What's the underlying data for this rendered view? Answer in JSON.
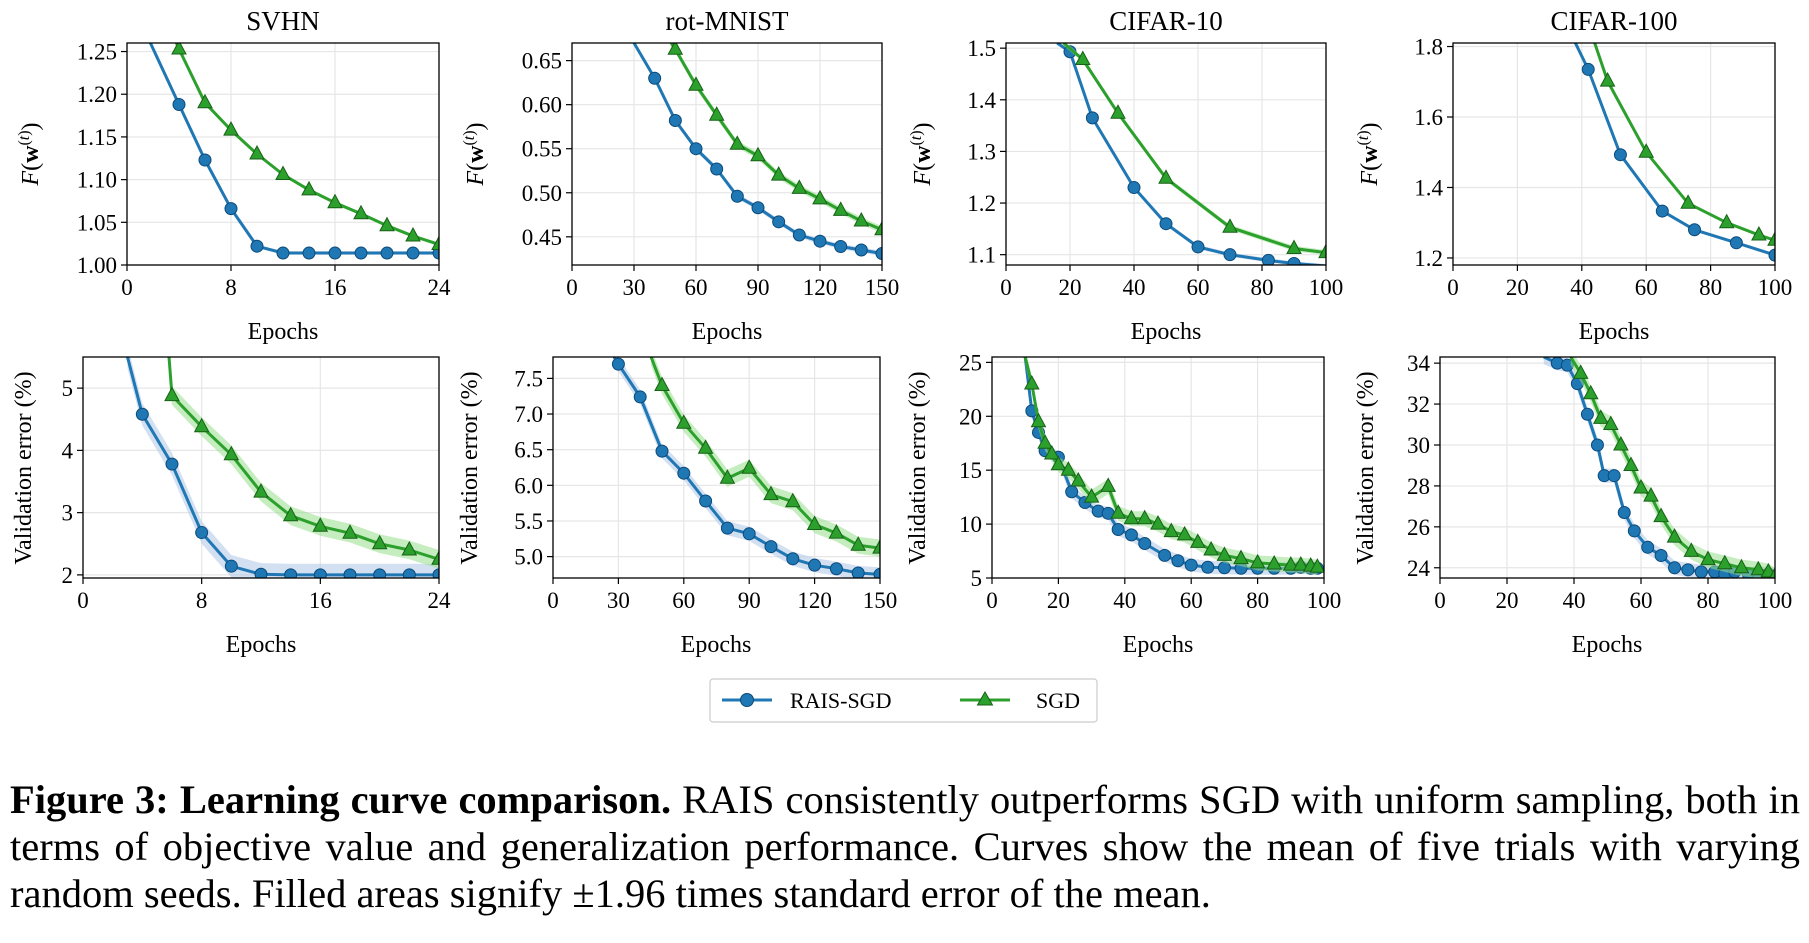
{
  "colors": {
    "rais": "#1f77b4",
    "sgd": "#2ca02c",
    "rais_band": "#aec7e8",
    "sgd_band": "#98df8a",
    "grid": "#e6e6e6"
  },
  "legend": {
    "items": [
      {
        "label": "RAIS-SGD",
        "marker": "circle"
      },
      {
        "label": "SGD",
        "marker": "triangle"
      }
    ]
  },
  "caption": {
    "title": "Figure 3: Learning curve comparison.",
    "text": "RAIS consistently outperforms SGD with uniform sampling, both in terms of objective value and generalization performance. Curves show the mean of five trials with varying random seeds. Filled areas signify ±1.96 times standard error of the mean."
  },
  "chart_data": [
    {
      "type": "line",
      "title": "SVHN",
      "xlabel": "Epochs",
      "ylabel": "F(w(t))",
      "xlim": [
        0,
        24
      ],
      "ylim": [
        1.0,
        1.26
      ],
      "xticks": [
        0,
        8,
        16,
        24
      ],
      "yticks": [
        1.0,
        1.05,
        1.1,
        1.15,
        1.2,
        1.25
      ],
      "ydecimals": 2,
      "series": [
        {
          "name": "RAIS-SGD",
          "x": [
            1.8,
            4,
            6,
            8,
            10,
            12,
            14,
            16,
            18,
            20,
            22,
            24
          ],
          "y": [
            1.26,
            1.188,
            1.123,
            1.066,
            1.022,
            1.014,
            1.014,
            1.014,
            1.014,
            1.014,
            1.014,
            1.014
          ],
          "band": 0.002
        },
        {
          "name": "SGD",
          "x": [
            3.8,
            4,
            6,
            8,
            10,
            12,
            14,
            16,
            18,
            20,
            22,
            24
          ],
          "y": [
            1.26,
            1.253,
            1.19,
            1.158,
            1.13,
            1.106,
            1.088,
            1.073,
            1.06,
            1.046,
            1.034,
            1.024
          ],
          "band": 0.002
        }
      ]
    },
    {
      "type": "line",
      "title": "rot-MNIST",
      "xlabel": "Epochs",
      "ylabel": "F(w(t))",
      "xlim": [
        0,
        150
      ],
      "ylim": [
        0.418,
        0.67
      ],
      "xticks": [
        0,
        30,
        60,
        90,
        120,
        150
      ],
      "yticks": [
        0.45,
        0.5,
        0.55,
        0.6,
        0.65
      ],
      "ydecimals": 2,
      "series": [
        {
          "name": "RAIS-SGD",
          "x": [
            30,
            40,
            50,
            60,
            70,
            80,
            90,
            100,
            110,
            120,
            130,
            140,
            150
          ],
          "y": [
            0.67,
            0.63,
            0.582,
            0.55,
            0.527,
            0.496,
            0.483,
            0.467,
            0.452,
            0.445,
            0.439,
            0.435,
            0.431
          ],
          "band": 0.003
        },
        {
          "name": "SGD",
          "x": [
            48,
            50,
            60,
            70,
            80,
            90,
            100,
            110,
            120,
            130,
            140,
            150
          ],
          "y": [
            0.67,
            0.663,
            0.622,
            0.588,
            0.555,
            0.542,
            0.52,
            0.505,
            0.493,
            0.48,
            0.468,
            0.458
          ],
          "band": 0.004
        }
      ]
    },
    {
      "type": "line",
      "title": "CIFAR-10",
      "xlabel": "Epochs",
      "ylabel": "F(w(t))",
      "xlim": [
        0,
        100
      ],
      "ylim": [
        1.08,
        1.51
      ],
      "xticks": [
        0,
        20,
        40,
        60,
        80,
        100
      ],
      "yticks": [
        1.1,
        1.2,
        1.3,
        1.4,
        1.5
      ],
      "ydecimals": 1,
      "series": [
        {
          "name": "RAIS-SGD",
          "x": [
            16,
            20,
            27,
            40,
            50,
            60,
            70,
            82,
            90,
            100
          ],
          "y": [
            1.51,
            1.493,
            1.365,
            1.23,
            1.16,
            1.115,
            1.1,
            1.089,
            1.083,
            1.078
          ],
          "band": 0.004
        },
        {
          "name": "SGD",
          "x": [
            18,
            24,
            35,
            50,
            70,
            90,
            100
          ],
          "y": [
            1.51,
            1.478,
            1.374,
            1.248,
            1.153,
            1.112,
            1.104
          ],
          "band": 0.005
        }
      ]
    },
    {
      "type": "line",
      "title": "CIFAR-100",
      "xlabel": "Epochs",
      "ylabel": "F(w(t))",
      "xlim": [
        0,
        100
      ],
      "ylim": [
        1.18,
        1.81
      ],
      "xticks": [
        0,
        20,
        40,
        60,
        80,
        100
      ],
      "yticks": [
        1.2,
        1.4,
        1.6,
        1.8
      ],
      "ydecimals": 1,
      "series": [
        {
          "name": "RAIS-SGD",
          "x": [
            38,
            42,
            52,
            65,
            75,
            88,
            100
          ],
          "y": [
            1.81,
            1.735,
            1.493,
            1.333,
            1.28,
            1.243,
            1.208
          ],
          "band": 0.004
        },
        {
          "name": "SGD",
          "x": [
            44,
            48,
            60,
            73,
            85,
            95,
            100
          ],
          "y": [
            1.81,
            1.702,
            1.5,
            1.355,
            1.3,
            1.265,
            1.25
          ],
          "band": 0.004
        }
      ]
    },
    {
      "type": "line",
      "xlabel": "Epochs",
      "ylabel": "Validation error (%)",
      "xlim": [
        0,
        24
      ],
      "ylim": [
        1.95,
        5.5
      ],
      "xticks": [
        0,
        8,
        16,
        24
      ],
      "yticks": [
        2,
        3,
        4,
        5
      ],
      "ydecimals": 0,
      "series": [
        {
          "name": "RAIS-SGD",
          "x": [
            3,
            4,
            6,
            8,
            10,
            12,
            14,
            16,
            18,
            20,
            22,
            24
          ],
          "y": [
            5.5,
            4.58,
            3.78,
            2.68,
            2.14,
            2.01,
            2.0,
            2.0,
            2.0,
            2.0,
            2.0,
            2.0
          ],
          "band": 0.18
        },
        {
          "name": "SGD",
          "x": [
            5.8,
            6,
            8,
            10,
            12,
            14,
            16,
            18,
            20,
            22,
            24
          ],
          "y": [
            5.5,
            4.88,
            4.38,
            3.93,
            3.33,
            2.95,
            2.78,
            2.67,
            2.5,
            2.4,
            2.25
          ],
          "band": 0.15
        }
      ]
    },
    {
      "type": "line",
      "xlabel": "Epochs",
      "ylabel": "Validation error (%)",
      "xlim": [
        0,
        150
      ],
      "ylim": [
        4.7,
        7.8
      ],
      "xticks": [
        0,
        30,
        60,
        90,
        120,
        150
      ],
      "yticks": [
        5.0,
        5.5,
        6.0,
        6.5,
        7.0,
        7.5
      ],
      "ydecimals": 1,
      "series": [
        {
          "name": "RAIS-SGD",
          "x": [
            28,
            30,
            40,
            50,
            60,
            70,
            80,
            90,
            100,
            110,
            120,
            130,
            140,
            150
          ],
          "y": [
            7.8,
            7.7,
            7.24,
            6.48,
            6.17,
            5.78,
            5.4,
            5.32,
            5.14,
            4.97,
            4.88,
            4.83,
            4.77,
            4.75
          ],
          "band": 0.1
        },
        {
          "name": "SGD",
          "x": [
            45,
            50,
            60,
            70,
            80,
            90,
            100,
            110,
            120,
            130,
            140,
            150
          ],
          "y": [
            7.8,
            7.4,
            6.87,
            6.52,
            6.1,
            6.24,
            5.87,
            5.77,
            5.45,
            5.33,
            5.16,
            5.12
          ],
          "band": 0.12
        }
      ]
    },
    {
      "type": "line",
      "xlabel": "Epochs",
      "ylabel": "Validation error (%)",
      "xlim": [
        0,
        100
      ],
      "ylim": [
        5,
        25.5
      ],
      "xticks": [
        0,
        20,
        40,
        60,
        80,
        100
      ],
      "yticks": [
        5,
        10,
        15,
        20,
        25
      ],
      "ydecimals": 0,
      "series": [
        {
          "name": "RAIS-SGD",
          "x": [
            10,
            12,
            14,
            16,
            20,
            24,
            28,
            32,
            35,
            38,
            42,
            46,
            52,
            56,
            60,
            65,
            70,
            75,
            80,
            85,
            90,
            93,
            96,
            98
          ],
          "y": [
            25.5,
            20.5,
            18.5,
            16.8,
            16.2,
            13.0,
            12.0,
            11.2,
            11.0,
            9.5,
            9.0,
            8.2,
            7.1,
            6.6,
            6.2,
            6.0,
            5.95,
            5.9,
            5.9,
            5.9,
            5.9,
            6.0,
            5.9,
            5.9
          ],
          "band": 0.6
        },
        {
          "name": "SGD",
          "x": [
            10,
            12,
            14,
            16,
            18,
            20,
            23,
            26,
            30,
            35,
            38,
            42,
            46,
            50,
            54,
            58,
            62,
            66,
            70,
            75,
            80,
            85,
            90,
            93,
            96,
            98
          ],
          "y": [
            25.5,
            23.0,
            19.5,
            17.5,
            16.5,
            15.5,
            15.0,
            14.0,
            12.5,
            13.5,
            11.0,
            10.5,
            10.5,
            10.0,
            9.3,
            9.0,
            8.3,
            7.6,
            7.1,
            6.8,
            6.4,
            6.3,
            6.2,
            6.2,
            6.1,
            6.0
          ],
          "band": 0.7
        }
      ]
    },
    {
      "type": "line",
      "xlabel": "Epochs",
      "ylabel": "Validation error (%)",
      "xlim": [
        0,
        100
      ],
      "ylim": [
        23.5,
        34.3
      ],
      "xticks": [
        0,
        20,
        40,
        60,
        80,
        100
      ],
      "yticks": [
        24,
        26,
        28,
        30,
        32,
        34
      ],
      "ydecimals": 0,
      "series": [
        {
          "name": "RAIS-SGD",
          "x": [
            31,
            35,
            38,
            41,
            44,
            47,
            49,
            52,
            55,
            58,
            62,
            66,
            70,
            74,
            78,
            82,
            85,
            88,
            92,
            95,
            98,
            100
          ],
          "y": [
            34.3,
            34.0,
            33.9,
            33.0,
            31.5,
            30.0,
            28.5,
            28.5,
            26.7,
            25.8,
            25.0,
            24.6,
            24.0,
            23.9,
            23.8,
            23.8,
            23.7,
            23.8,
            23.7,
            23.7,
            23.7,
            23.6
          ],
          "band": 0.35
        },
        {
          "name": "SGD",
          "x": [
            39,
            42,
            45,
            48,
            51,
            54,
            57,
            60,
            63,
            66,
            70,
            75,
            80,
            85,
            90,
            95,
            98,
            100
          ],
          "y": [
            34.3,
            33.5,
            32.5,
            31.3,
            31.0,
            30.0,
            29.0,
            27.9,
            27.5,
            26.5,
            25.5,
            24.8,
            24.4,
            24.2,
            24.0,
            23.9,
            23.8,
            23.6
          ],
          "band": 0.4
        }
      ]
    }
  ]
}
